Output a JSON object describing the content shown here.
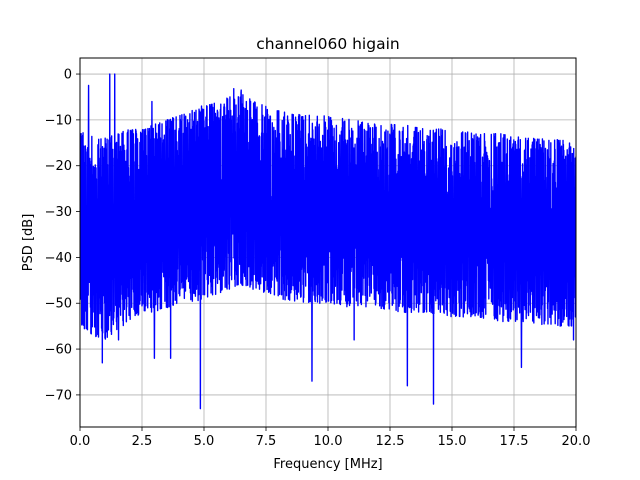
{
  "chart_data": {
    "type": "line",
    "title": "channel060 higain",
    "xlabel": "Frequency [MHz]",
    "ylabel": "PSD [dB]",
    "xlim": [
      0,
      20
    ],
    "ylim": [
      -77,
      3.5
    ],
    "x_ticks": [
      0,
      2.5,
      5,
      7.5,
      10,
      12.5,
      15,
      17.5,
      20
    ],
    "x_tick_labels": [
      "0.0",
      "2.5",
      "5.0",
      "7.5",
      "10.0",
      "12.5",
      "15.0",
      "17.5",
      "20.0"
    ],
    "y_ticks": [
      0,
      -10,
      -20,
      -30,
      -40,
      -50,
      -60,
      -70
    ],
    "y_tick_labels": [
      "0",
      "−10",
      "−20",
      "−30",
      "−40",
      "−50",
      "−60",
      "−70"
    ],
    "grid": true,
    "series": [
      {
        "color": "#0000ff",
        "envelope_x": [
          0,
          0.5,
          1.0,
          1.5,
          2.0,
          2.5,
          3.0,
          3.5,
          4.0,
          4.5,
          5.0,
          5.5,
          6.0,
          6.5,
          7.0,
          7.5,
          8.0,
          9.0,
          10.0,
          11.0,
          12.0,
          13.0,
          14.0,
          15.0,
          16.0,
          17.0,
          18.0,
          19.0,
          20.0
        ],
        "upper_db": [
          -12,
          -13,
          -14,
          -13,
          -12,
          -12,
          -11,
          -10,
          -9,
          -8,
          -7,
          -6,
          -5,
          -4,
          -6,
          -7,
          -8,
          -9,
          -9,
          -10,
          -11,
          -11,
          -12,
          -12,
          -13,
          -13,
          -14,
          -14,
          -15
        ],
        "lower_db": [
          -55,
          -57,
          -58,
          -56,
          -54,
          -52,
          -52,
          -51,
          -50,
          -50,
          -49,
          -48,
          -47,
          -46,
          -47,
          -48,
          -49,
          -50,
          -50,
          -51,
          -51,
          -52,
          -52,
          -53,
          -53,
          -54,
          -54,
          -55,
          -55
        ],
        "peaks": [
          {
            "x": 0.35,
            "y": -2.5
          },
          {
            "x": 1.2,
            "y": 0
          },
          {
            "x": 1.4,
            "y": 0
          },
          {
            "x": 2.9,
            "y": -6
          },
          {
            "x": 4.9,
            "y": -7
          },
          {
            "x": 6.2,
            "y": -3.2
          },
          {
            "x": 6.5,
            "y": -3.5
          }
        ],
        "dips": [
          {
            "x": 0.9,
            "y": -63
          },
          {
            "x": 1.55,
            "y": -58
          },
          {
            "x": 3.0,
            "y": -62
          },
          {
            "x": 3.65,
            "y": -62
          },
          {
            "x": 4.85,
            "y": -73
          },
          {
            "x": 9.35,
            "y": -67
          },
          {
            "x": 11.05,
            "y": -58
          },
          {
            "x": 13.2,
            "y": -68
          },
          {
            "x": 14.25,
            "y": -72
          },
          {
            "x": 17.8,
            "y": -64
          },
          {
            "x": 19.9,
            "y": -58
          }
        ]
      }
    ]
  }
}
